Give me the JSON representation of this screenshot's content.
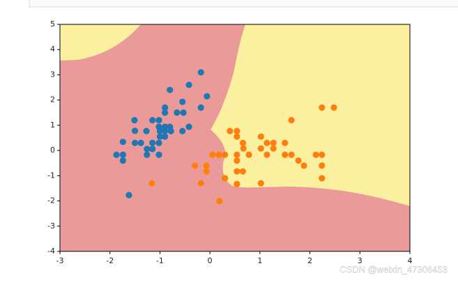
{
  "chart_data": {
    "type": "scatter",
    "xlim": [
      -3,
      4
    ],
    "ylim": [
      -4,
      5
    ],
    "xticks": [
      -3,
      -2,
      -1,
      0,
      1,
      2,
      3,
      4
    ],
    "yticks": [
      -4,
      -3,
      -2,
      -1,
      0,
      1,
      2,
      3,
      4,
      5
    ],
    "series": [
      {
        "color": "#1f77b4",
        "x": [
          -0.18,
          -0.42,
          -0.06,
          -0.8,
          -0.55,
          -0.9,
          -0.9,
          -0.66,
          -0.53,
          -0.18,
          -1.51,
          -1.15,
          -1.02,
          -1.02,
          -0.9,
          -0.8,
          -1.0,
          -0.9,
          -0.78,
          -1.5,
          -1.27,
          -0.42,
          -0.55,
          -1.0,
          -0.9,
          -1.74,
          -1.5,
          -1.38,
          -1.15,
          -1.02,
          -1.26,
          -1.15,
          -1.02,
          -1.26,
          -1.87,
          -1.74,
          -1.74,
          -1.62
        ],
        "y": [
          3.1,
          2.6,
          2.15,
          2.4,
          1.93,
          1.7,
          1.5,
          1.5,
          1.5,
          1.7,
          1.2,
          1.2,
          1.2,
          0.94,
          0.94,
          0.94,
          0.77,
          0.77,
          0.77,
          0.78,
          0.77,
          0.94,
          0.77,
          0.55,
          0.55,
          0.34,
          0.3,
          0.3,
          0.3,
          0.3,
          0.06,
          0.06,
          -0.17,
          -0.17,
          -0.17,
          -0.17,
          -0.4,
          -1.77
        ]
      },
      {
        "color": "#ff7f0e",
        "x": [
          0.4,
          0.54,
          0.54,
          1.02,
          1.63,
          2.24,
          2.48,
          0.66,
          1.14,
          1.27,
          1.5,
          0.67,
          0.78,
          1.02,
          1.14,
          1.27,
          1.5,
          1.63,
          0.05,
          0.18,
          0.3,
          0.54,
          0.54,
          1.77,
          1.88,
          2.12,
          2.24,
          2.24,
          -0.07,
          -0.3,
          -0.07,
          0.54,
          0.66,
          0.3,
          2.24,
          -1.16,
          -0.18,
          0.54,
          1.02,
          0.19
        ],
        "y": [
          0.77,
          0.77,
          0.55,
          0.55,
          1.2,
          1.7,
          1.7,
          0.3,
          0.3,
          0.3,
          0.3,
          0.08,
          -0.17,
          0.08,
          -0.17,
          0.08,
          -0.17,
          -0.17,
          -0.17,
          -0.17,
          -0.17,
          -0.17,
          -0.4,
          -0.4,
          -0.6,
          -0.17,
          -0.17,
          -0.6,
          -0.6,
          -0.6,
          -0.83,
          -0.83,
          -0.83,
          -1.1,
          -1.1,
          -1.3,
          -1.3,
          -1.33,
          -1.3,
          -2.0
        ]
      }
    ]
  },
  "watermark": "CSDN @weixin_47306453"
}
